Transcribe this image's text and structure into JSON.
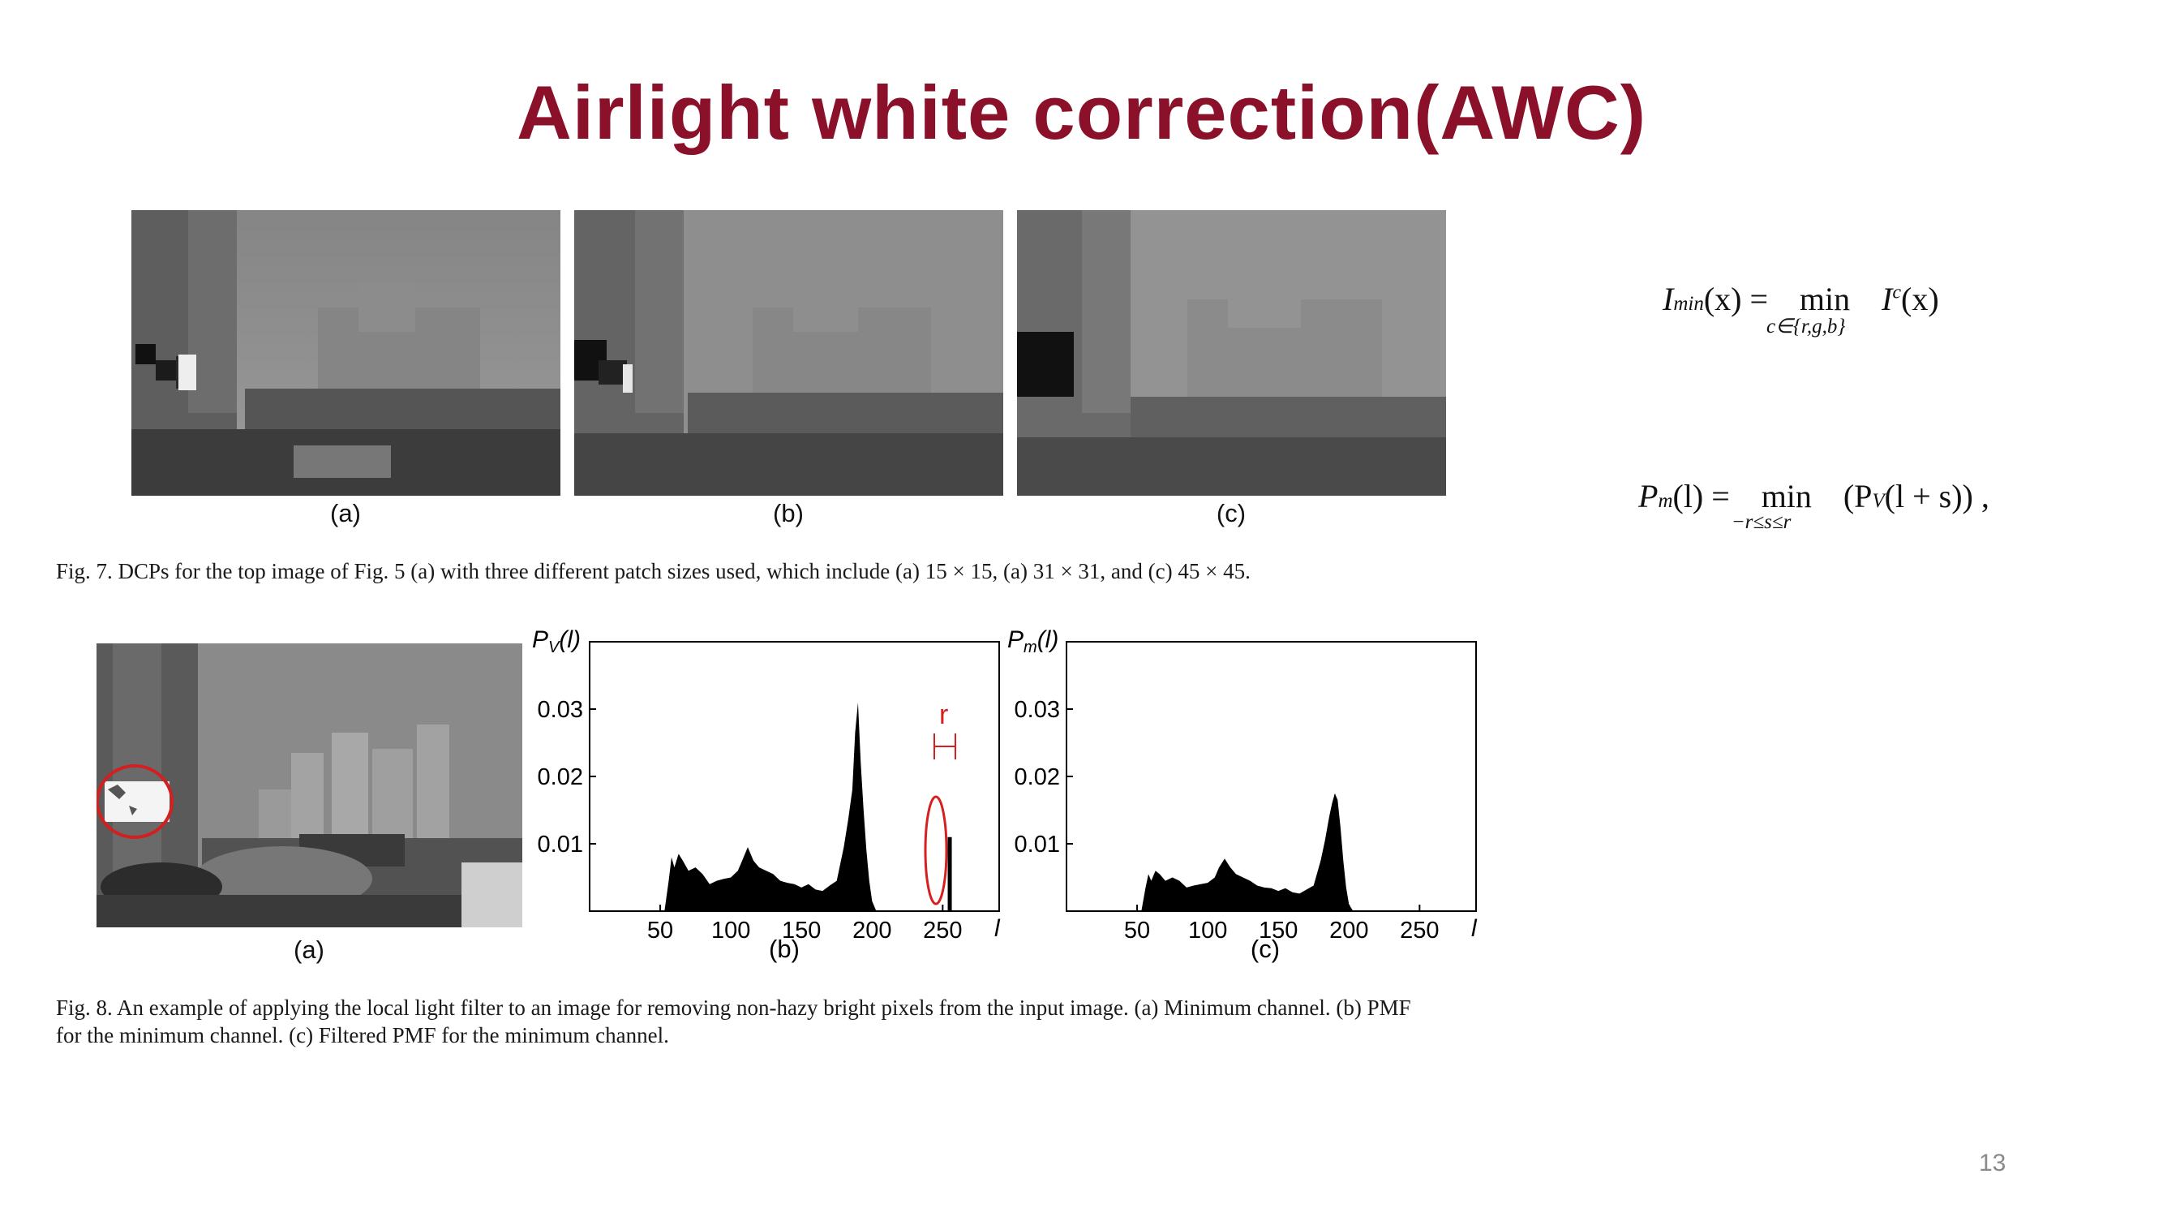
{
  "slide": {
    "title": "Airlight white correction(AWC)",
    "page_number": "13"
  },
  "fig7": {
    "labels": [
      "(a)",
      "(b)",
      "(c)"
    ],
    "caption": "Fig. 7.   DCPs for the top image of Fig. 5 (a) with three different patch sizes used, which include (a) 15 × 15, (a) 31 × 31, and (c) 45 × 45."
  },
  "equations": {
    "eq1": {
      "lhs_var": "I",
      "lhs_sub": "min",
      "lhs_arg": "(x) =",
      "op": "min",
      "op_sub": "c∈{r,g,b}",
      "rhs_var": "I",
      "rhs_sup": "c",
      "rhs_arg": "(x)"
    },
    "eq2": {
      "lhs_var": "P",
      "lhs_sub": "m",
      "lhs_arg": "(l) =",
      "op": "min",
      "op_sub": "−r≤s≤r",
      "rhs": "(P",
      "rhs_sub": "V",
      "rhs_arg": "(l + s)) ,"
    }
  },
  "fig8": {
    "label_a": "(a)",
    "caption_line1": "Fig. 8.   An example of applying the local light filter to an image for removing non-hazy bright pixels from the input image. (a) Minimum channel. (b) PMF",
    "caption_line2": "for the minimum channel. (c) Filtered PMF for the minimum channel.",
    "annotation_r": "r",
    "annotation_color": "#d62020",
    "charts": [
      {
        "label": "(b)",
        "ylabel_main": "P",
        "ylabel_sub": "V",
        "ylabel_arg": "(l)",
        "xlabel": "l",
        "x_ticks": [
          "50",
          "100",
          "150",
          "200",
          "250"
        ],
        "y_ticks": [
          "0.01",
          "0.02",
          "0.03"
        ]
      },
      {
        "label": "(c)",
        "ylabel_main": "P",
        "ylabel_sub": "m",
        "ylabel_arg": "(l)",
        "xlabel": "l",
        "x_ticks": [
          "50",
          "100",
          "150",
          "200",
          "250"
        ],
        "y_ticks": [
          "0.01",
          "0.02",
          "0.03"
        ]
      }
    ]
  },
  "chart_data": [
    {
      "type": "area",
      "title": "",
      "xlabel": "l",
      "ylabel": "P_V(l)",
      "xlim": [
        0,
        255
      ],
      "ylim": [
        0,
        0.04
      ],
      "x": [
        53,
        56,
        58,
        60,
        63,
        66,
        70,
        75,
        80,
        85,
        90,
        95,
        100,
        105,
        108,
        112,
        116,
        120,
        125,
        130,
        135,
        140,
        145,
        150,
        155,
        160,
        165,
        170,
        175,
        180,
        183,
        186,
        188,
        190,
        192,
        194,
        196,
        198,
        200,
        203
      ],
      "values": [
        0.0,
        0.0045,
        0.008,
        0.0065,
        0.0085,
        0.0075,
        0.006,
        0.0065,
        0.0055,
        0.004,
        0.0045,
        0.0048,
        0.005,
        0.006,
        0.0075,
        0.0095,
        0.0075,
        0.0065,
        0.006,
        0.0055,
        0.0045,
        0.0042,
        0.004,
        0.0035,
        0.004,
        0.0032,
        0.003,
        0.0038,
        0.0045,
        0.0095,
        0.0135,
        0.018,
        0.0265,
        0.031,
        0.022,
        0.015,
        0.009,
        0.0045,
        0.0015,
        0.0
      ],
      "spike": {
        "x": 255,
        "value": 0.011
      }
    },
    {
      "type": "area",
      "title": "",
      "xlabel": "l",
      "ylabel": "P_m(l)",
      "xlim": [
        0,
        255
      ],
      "ylim": [
        0,
        0.04
      ],
      "x": [
        53,
        56,
        58,
        60,
        63,
        66,
        70,
        75,
        80,
        85,
        90,
        95,
        100,
        105,
        108,
        112,
        116,
        120,
        125,
        130,
        135,
        140,
        145,
        150,
        155,
        160,
        165,
        170,
        175,
        180,
        183,
        186,
        188,
        190,
        192,
        194,
        196,
        198,
        200,
        203
      ],
      "values": [
        0.0,
        0.0035,
        0.0055,
        0.0045,
        0.006,
        0.0055,
        0.0045,
        0.005,
        0.0045,
        0.0035,
        0.0038,
        0.004,
        0.0042,
        0.005,
        0.0065,
        0.0078,
        0.0065,
        0.0055,
        0.005,
        0.0045,
        0.0038,
        0.0035,
        0.0034,
        0.003,
        0.0034,
        0.0028,
        0.0026,
        0.0032,
        0.0038,
        0.0075,
        0.0105,
        0.014,
        0.016,
        0.0175,
        0.0165,
        0.0125,
        0.0075,
        0.0035,
        0.001,
        0.0
      ]
    }
  ]
}
